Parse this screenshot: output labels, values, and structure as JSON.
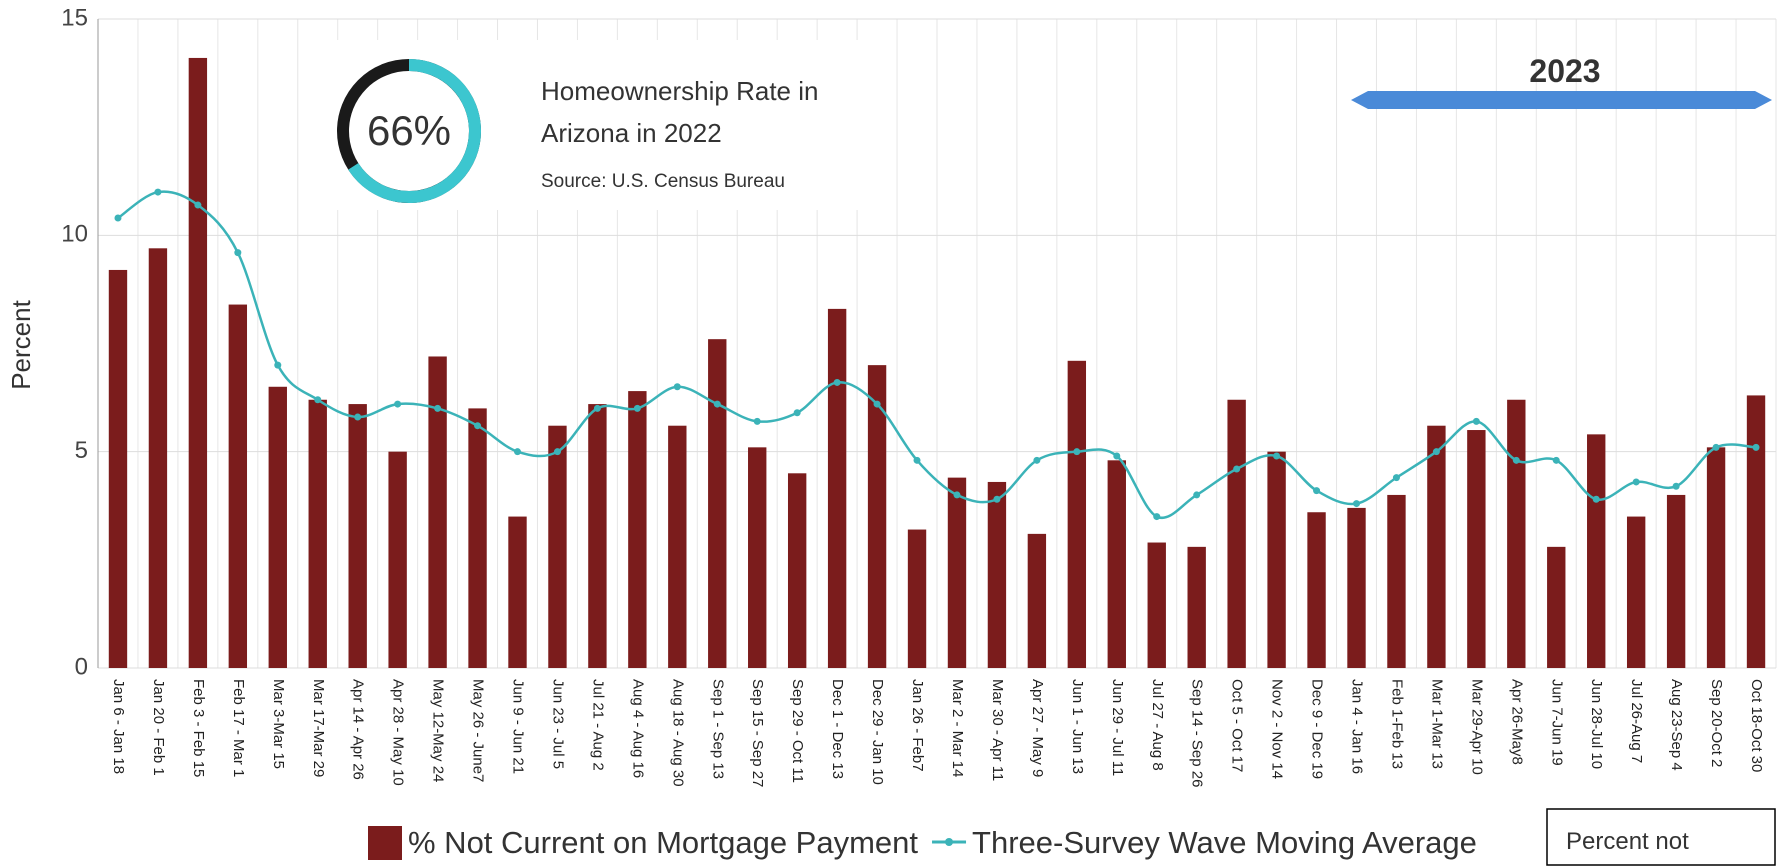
{
  "chart_data": {
    "type": "bar",
    "y_label": "Percent",
    "categories": [
      "Jan 6 - Jan 18",
      "Jan 20 - Feb 1",
      "Feb 3 - Feb 15",
      "Feb 17 - Mar 1",
      "Mar 3-Mar 15",
      "Mar 17-Mar 29",
      "Apr 14 - Apr 26",
      "Apr 28 - May 10",
      "May 12-May 24",
      "May 26 - June7",
      "Jun 9 - Jun 21",
      "Jun 23 - Jul 5",
      "Jul 21 - Aug 2",
      "Aug 4 - Aug 16",
      "Aug 18 - Aug 30",
      "Sep 1 - Sep 13",
      "Sep 15 - Sep 27",
      "Sep 29 - Oct 11",
      "Dec 1 - Dec 13",
      "Dec 29 - Jan 10",
      "Jan 26 - Feb7",
      "Mar 2 - Mar 14",
      "Mar 30 - Apr 11",
      "Apr 27 - May 9",
      "Jun 1 - Jun 13",
      "Jun 29 - Jul 11",
      "Jul 27 - Aug 8",
      "Sep 14 - Sep 26",
      "Oct 5 - Oct 17",
      "Nov 2 - Nov 14",
      "Dec 9 - Dec 19",
      "Jan 4 - Jan 16",
      "Feb 1-Feb 13",
      "Mar 1-Mar 13",
      "Mar 29-Apr 10",
      "Apr 26-May8",
      "Jun 7-Jun 19",
      "Jun 28-Jul 10",
      "Jul 26-Aug 7",
      "Aug 23-Sep 4",
      "Sep 20-Oct 2",
      "Oct 18-Oct 30"
    ],
    "series": [
      {
        "name": "% Not Current on Mortgage Payment",
        "type": "bar",
        "color": "#7b1c1c",
        "values": [
          9.2,
          9.7,
          14.1,
          8.4,
          6.5,
          6.2,
          6.1,
          5.0,
          7.2,
          6.0,
          3.5,
          5.6,
          6.1,
          6.4,
          5.6,
          7.6,
          5.1,
          4.5,
          8.3,
          7.0,
          3.2,
          4.4,
          4.3,
          3.1,
          7.1,
          4.8,
          2.9,
          2.8,
          6.2,
          5.0,
          3.6,
          3.7,
          4.0,
          5.6,
          5.5,
          6.2,
          2.8,
          5.4,
          3.5,
          4.0,
          5.1,
          6.3
        ]
      },
      {
        "name": "Three-Survey Wave Moving Average",
        "type": "line",
        "color": "#3bb3b8",
        "values": [
          10.4,
          11.0,
          10.7,
          9.6,
          7.0,
          6.2,
          5.8,
          6.1,
          6.0,
          5.6,
          5.0,
          5.0,
          6.0,
          6.0,
          6.5,
          6.1,
          5.7,
          5.9,
          6.6,
          6.1,
          4.8,
          4.0,
          3.9,
          4.8,
          5.0,
          4.9,
          3.5,
          4.0,
          4.6,
          4.9,
          4.1,
          3.8,
          4.4,
          5.0,
          5.7,
          4.8,
          4.8,
          3.9,
          4.3,
          4.2,
          5.1,
          5.1
        ]
      }
    ],
    "ylim": [
      0,
      15
    ],
    "yticks": [
      0,
      5,
      10,
      15
    ],
    "grid": true,
    "annotations": {
      "donut": {
        "value": 66,
        "label": "66%"
      },
      "info_title": [
        "Homeownership Rate in",
        "Arizona in 2022"
      ],
      "source": "Source: U.S. Census Bureau",
      "banner": "2023",
      "note": "Percent not"
    }
  }
}
